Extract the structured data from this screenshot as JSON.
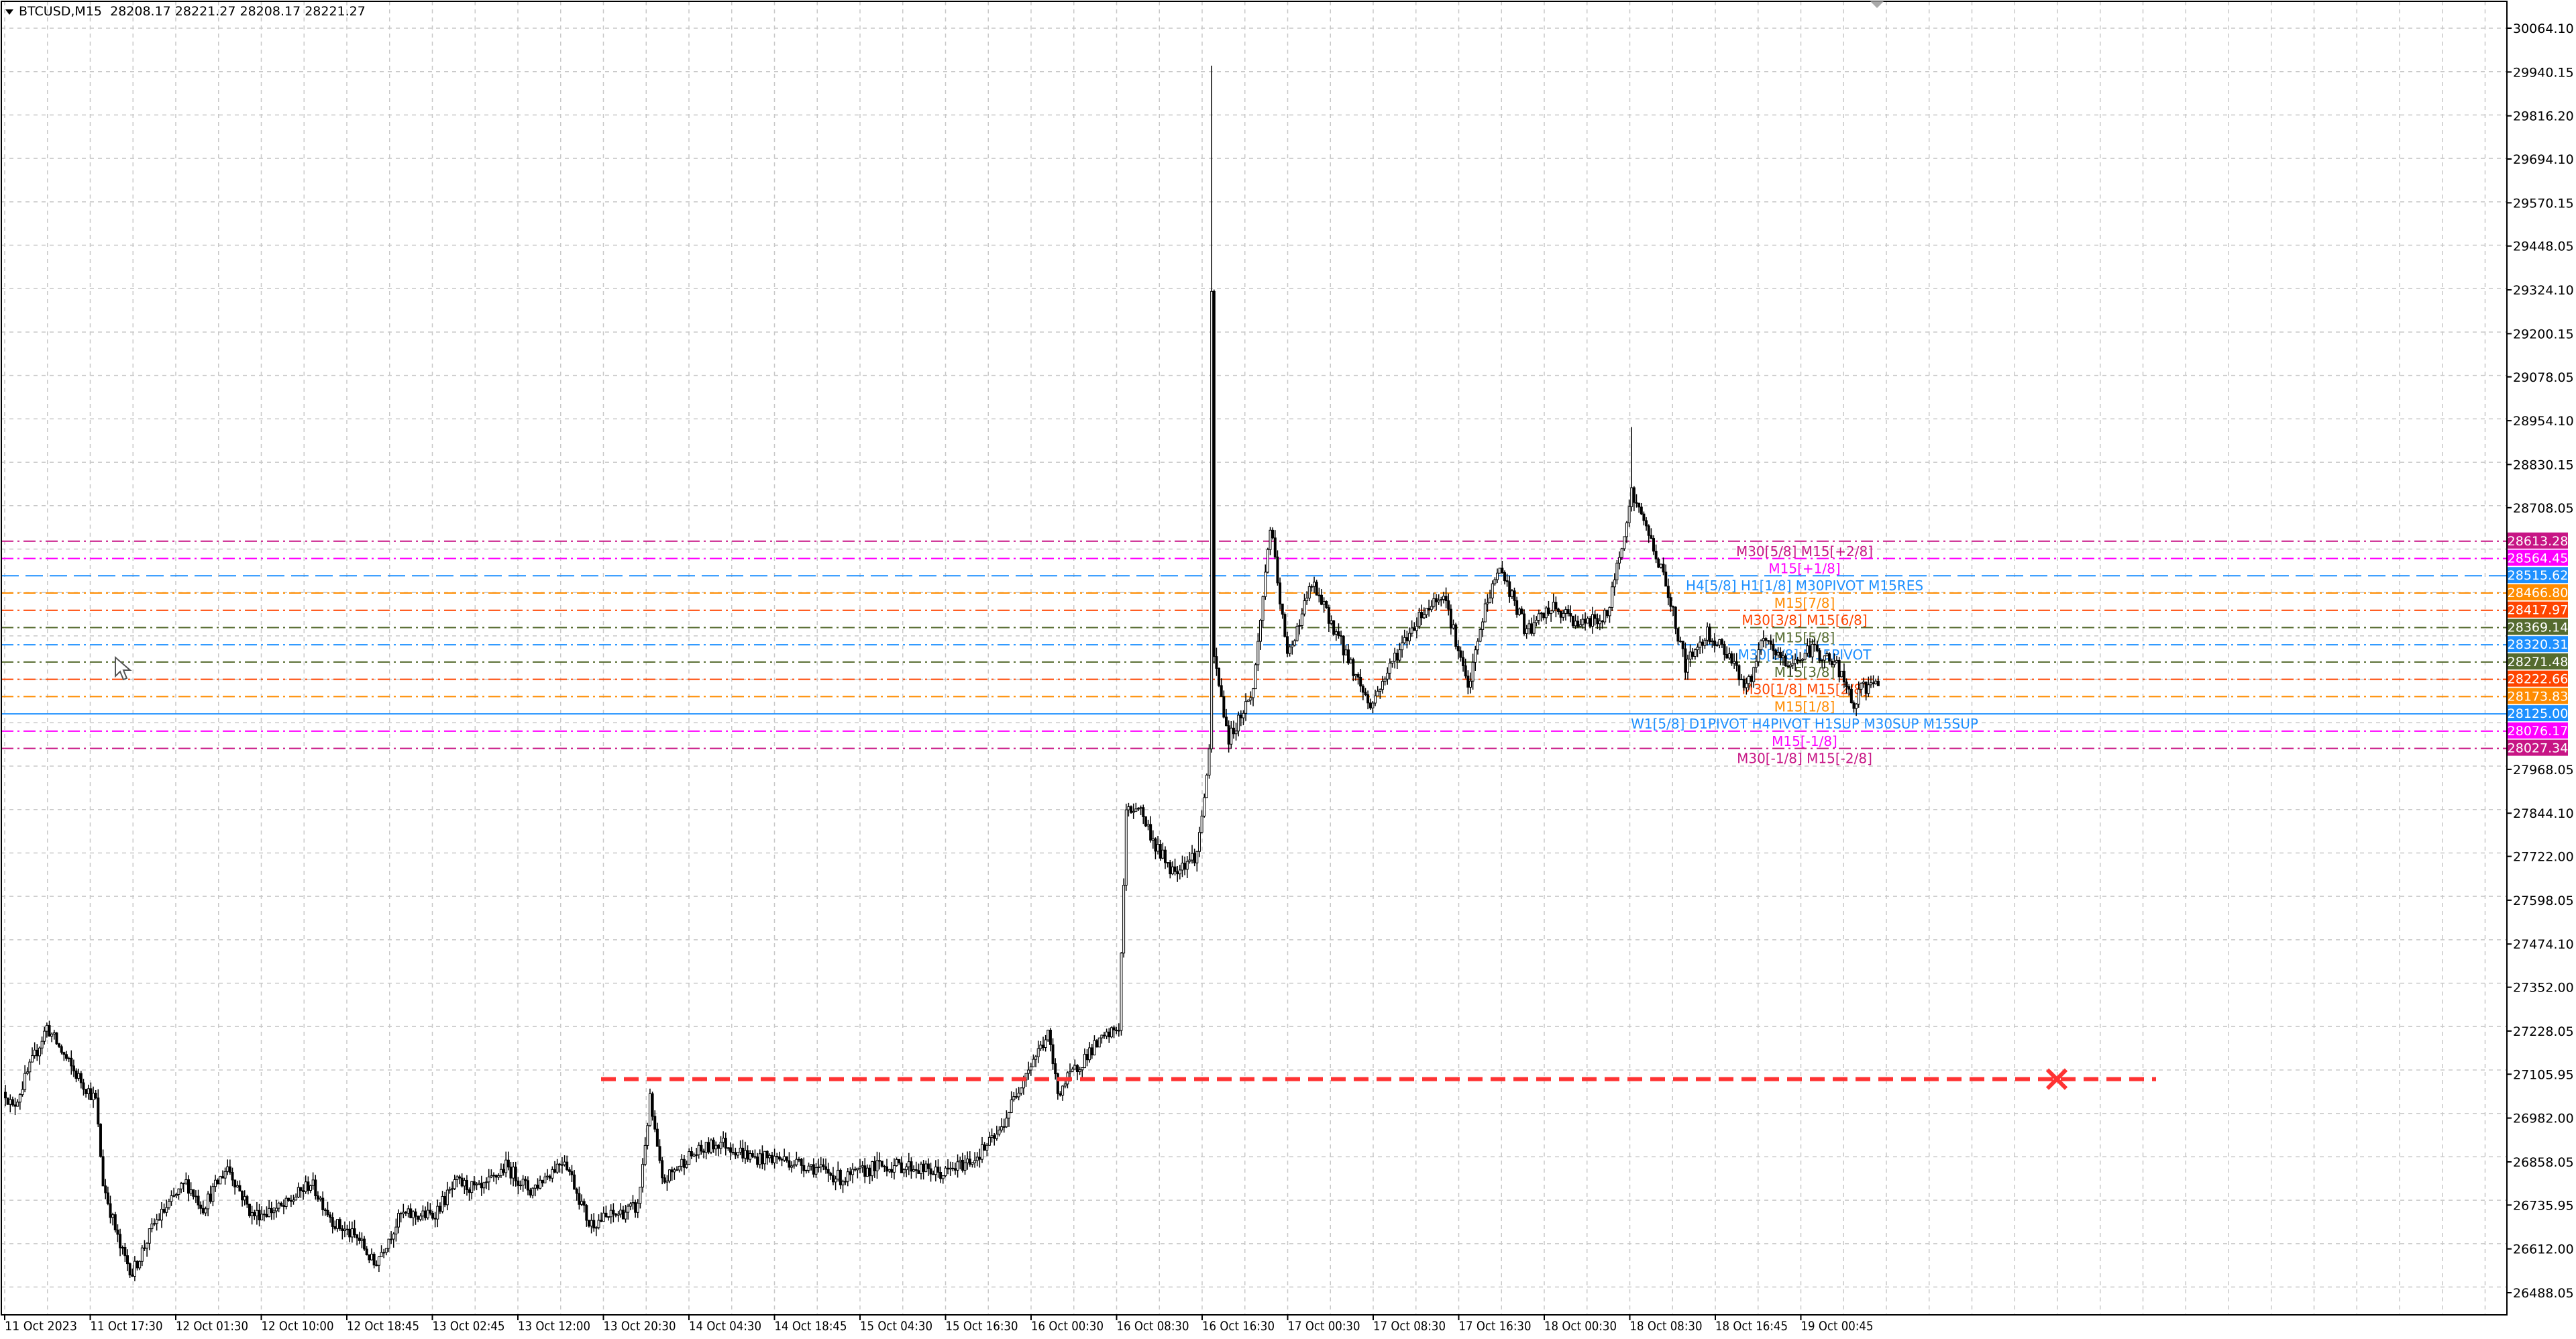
{
  "header": {
    "symbol_timeframe": "BTCUSD,M15",
    "ohlc": "28208.17 28221.27 28208.17 28221.27"
  },
  "chart_data": {
    "type": "candlestick",
    "symbol": "BTCUSD",
    "timeframe": "M15",
    "ylim": [
      26488.05,
      30064.1
    ],
    "grid": true,
    "y_ticks": [
      "30064.10",
      "29940.15",
      "29816.20",
      "29694.10",
      "29570.15",
      "29448.05",
      "29324.10",
      "29200.15",
      "29078.05",
      "28954.10",
      "28830.15",
      "28708.05",
      "27968.05",
      "27844.10",
      "27722.00",
      "27598.05",
      "27474.10",
      "27352.00",
      "27228.05",
      "27105.95",
      "26982.00",
      "26858.05",
      "26735.95",
      "26612.00",
      "26488.05"
    ],
    "x_ticks": [
      "11 Oct 2023",
      "11 Oct 17:30",
      "12 Oct 01:30",
      "12 Oct 10:00",
      "12 Oct 18:45",
      "13 Oct 02:45",
      "13 Oct 12:00",
      "13 Oct 20:30",
      "14 Oct 04:30",
      "14 Oct 18:45",
      "15 Oct 04:30",
      "15 Oct 16:30",
      "16 Oct 00:30",
      "16 Oct 08:30",
      "16 Oct 16:30",
      "17 Oct 00:30",
      "17 Oct 08:30",
      "17 Oct 16:30",
      "18 Oct 00:30",
      "18 Oct 08:30",
      "18 Oct 16:45",
      "19 Oct 00:45"
    ],
    "price_path_bar_price": [
      [
        0,
        27055
      ],
      [
        3,
        27008
      ],
      [
        17,
        27240
      ],
      [
        27,
        27124
      ],
      [
        37,
        27032
      ],
      [
        40,
        26799
      ],
      [
        47,
        26614
      ],
      [
        52,
        26544
      ],
      [
        61,
        26683
      ],
      [
        74,
        26799
      ],
      [
        81,
        26730
      ],
      [
        91,
        26846
      ],
      [
        101,
        26707
      ],
      [
        114,
        26730
      ],
      [
        125,
        26799
      ],
      [
        135,
        26683
      ],
      [
        145,
        26637
      ],
      [
        151,
        26567
      ],
      [
        162,
        26707
      ],
      [
        175,
        26707
      ],
      [
        185,
        26799
      ],
      [
        195,
        26776
      ],
      [
        205,
        26846
      ],
      [
        215,
        26776
      ],
      [
        229,
        26869
      ],
      [
        239,
        26683
      ],
      [
        249,
        26707
      ],
      [
        259,
        26730
      ],
      [
        264,
        27032
      ],
      [
        269,
        26799
      ],
      [
        279,
        26869
      ],
      [
        293,
        26915
      ],
      [
        306,
        26869
      ],
      [
        316,
        26869
      ],
      [
        330,
        26846
      ],
      [
        343,
        26809
      ],
      [
        357,
        26846
      ],
      [
        370,
        26846
      ],
      [
        384,
        26823
      ],
      [
        397,
        26869
      ],
      [
        407,
        26939
      ],
      [
        417,
        27101
      ],
      [
        427,
        27217
      ],
      [
        431,
        27055
      ],
      [
        444,
        27171
      ],
      [
        456,
        27240
      ],
      [
        459,
        27844
      ],
      [
        464,
        27867
      ],
      [
        471,
        27751
      ],
      [
        478,
        27682
      ],
      [
        488,
        27728
      ],
      [
        493,
        28007
      ],
      [
        494,
        29307
      ],
      [
        495,
        28285
      ],
      [
        501,
        28053
      ],
      [
        511,
        28193
      ],
      [
        518,
        28657
      ],
      [
        525,
        28285
      ],
      [
        535,
        28494
      ],
      [
        545,
        28355
      ],
      [
        559,
        28146
      ],
      [
        569,
        28285
      ],
      [
        579,
        28401
      ],
      [
        589,
        28471
      ],
      [
        599,
        28193
      ],
      [
        606,
        28425
      ],
      [
        612,
        28541
      ],
      [
        623,
        28355
      ],
      [
        633,
        28425
      ],
      [
        646,
        28378
      ],
      [
        656,
        28401
      ],
      [
        666,
        28750
      ],
      [
        673,
        28634
      ],
      [
        680,
        28494
      ],
      [
        688,
        28262
      ],
      [
        697,
        28355
      ],
      [
        707,
        28285
      ],
      [
        713,
        28193
      ],
      [
        720,
        28332
      ],
      [
        730,
        28262
      ],
      [
        740,
        28309
      ],
      [
        750,
        28262
      ],
      [
        757,
        28146
      ],
      [
        760,
        28193
      ],
      [
        767,
        28221
      ]
    ],
    "spike_highs_bar_price": [
      [
        494,
        29958
      ],
      [
        666,
        28936
      ]
    ],
    "levels": [
      {
        "price": "28613.28",
        "label": "M30[5/8] M15[+2/8]",
        "color": "#c71585",
        "dash": "dashdot"
      },
      {
        "price": "28564.45",
        "label": "M15[+1/8]",
        "color": "#ff00ff",
        "dash": "dashdot"
      },
      {
        "price": "28515.62",
        "label": "H4[5/8] H1[1/8] M30PIVOT M15RES",
        "color": "#1e90ff",
        "dash": "dash"
      },
      {
        "price": "28466.80",
        "label": "M15[7/8]",
        "color": "#ff8c00",
        "dash": "dashdot"
      },
      {
        "price": "28417.97",
        "label": "M30[3/8] M15[6/8]",
        "color": "#ff4500",
        "dash": "dashdot"
      },
      {
        "price": "28369.14",
        "label": "M15[5/8]",
        "color": "#556b2f",
        "dash": "dashdot"
      },
      {
        "price": "28320.31",
        "label": "M30[2/8] M15PIVOT",
        "color": "#1e90ff",
        "dash": "dashdot"
      },
      {
        "price": "28271.48",
        "label": "M15[3/8]",
        "color": "#556b2f",
        "dash": "dashdot"
      },
      {
        "price": "28222.66",
        "label": "M30[1/8] M15[2/8]",
        "color": "#ff4500",
        "dash": "dashdot"
      },
      {
        "price": "28173.83",
        "label": "M15[1/8]",
        "color": "#ff8c00",
        "dash": "dashdot"
      },
      {
        "price": "28125.00",
        "label": "W1[5/8] D1PIVOT H4PIVOT H1SUP M30SUP M15SUP",
        "color": "#1e90ff",
        "dash": "solid"
      },
      {
        "price": "28076.17",
        "label": "M15[-1/8]",
        "color": "#ff00ff",
        "dash": "dashdot"
      },
      {
        "price": "28027.34",
        "label": "M30[-1/8] M15[-2/8]",
        "color": "#c71585",
        "dash": "dashdot"
      }
    ],
    "trend_line": {
      "price": 27092,
      "color": "#ff3333",
      "style": "dashed",
      "marker": "x"
    }
  },
  "icons": {
    "cursor": "arrow-cursor-icon",
    "menu": "triangle-down-icon"
  }
}
